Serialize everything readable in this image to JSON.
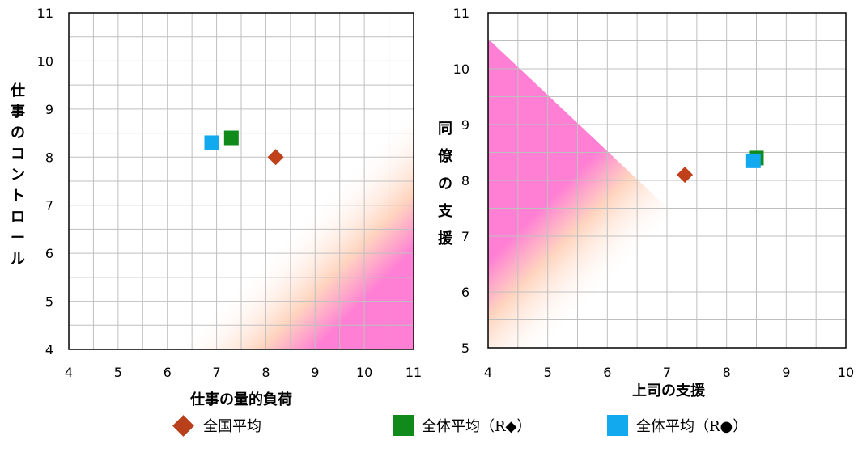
{
  "colors": {
    "national": "#C0401A",
    "overall_r_diamond": "#108A1A",
    "overall_r_circle": "#12A9EE",
    "grid": "#BFBFBF",
    "danger_strong": "#FF7FD4",
    "danger_light": "#FFD0B8"
  },
  "legend": {
    "items": [
      {
        "label": "全国平均",
        "marker": "diamond-icon",
        "color": "#B8401A"
      },
      {
        "label": "全体平均（R◆）",
        "marker": "square-icon",
        "color": "#108A1A"
      },
      {
        "label": "全体平均（R●）",
        "marker": "square-icon",
        "color": "#12A9EE"
      }
    ]
  },
  "chart_data": [
    {
      "type": "scatter",
      "xlabel": "仕事の量的負荷",
      "ylabel": "仕事のコントロール",
      "xlim": [
        4,
        11
      ],
      "ylim": [
        4,
        11
      ],
      "xticks": [
        "4",
        "5",
        "6",
        "7",
        "8",
        "9",
        "10",
        "11"
      ],
      "yticks": [
        "4",
        "5",
        "6",
        "7",
        "8",
        "9",
        "10",
        "11"
      ],
      "grid": true,
      "background_gradient": "pink risk gradient toward bottom-right",
      "series": [
        {
          "name": "全国平均",
          "marker": "diamond",
          "color": "#C0401A",
          "x": 8.2,
          "y": 8.0
        },
        {
          "name": "全体平均（R◆）",
          "marker": "square",
          "color": "#108A1A",
          "x": 7.3,
          "y": 8.4
        },
        {
          "name": "全体平均（R●）",
          "marker": "square",
          "color": "#12A9EE",
          "x": 6.9,
          "y": 8.3
        }
      ]
    },
    {
      "type": "scatter",
      "xlabel": "上司の支援",
      "ylabel": "同僚の支援",
      "xlim": [
        4,
        10
      ],
      "ylim": [
        5,
        11
      ],
      "xticks": [
        "4",
        "5",
        "6",
        "7",
        "8",
        "9",
        "10"
      ],
      "yticks": [
        "5",
        "6",
        "7",
        "8",
        "9",
        "10",
        "11"
      ],
      "grid": true,
      "background_gradient": "pink risk gradient toward bottom-left",
      "series": [
        {
          "name": "全国平均",
          "marker": "diamond",
          "color": "#C0401A",
          "x": 7.3,
          "y": 8.1
        },
        {
          "name": "全体平均（R◆）",
          "marker": "square",
          "color": "#108A1A",
          "x": 8.5,
          "y": 8.4
        },
        {
          "name": "全体平均（R●）",
          "marker": "square",
          "color": "#12A9EE",
          "x": 8.45,
          "y": 8.35
        }
      ]
    }
  ]
}
